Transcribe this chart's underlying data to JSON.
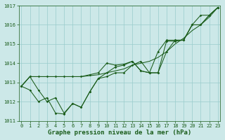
{
  "xlabel": "Graphe pression niveau de la mer (hPa)",
  "bg_color": "#cce8e8",
  "grid_color": "#99cccc",
  "line_color": "#1a5c1a",
  "x_values": [
    0,
    1,
    2,
    3,
    4,
    5,
    6,
    7,
    8,
    9,
    10,
    11,
    12,
    13,
    14,
    15,
    16,
    17,
    18,
    19,
    20,
    21,
    22,
    23
  ],
  "series_smooth": [
    1012.8,
    1013.3,
    1013.3,
    1013.3,
    1013.3,
    1013.3,
    1013.3,
    1013.3,
    1013.35,
    1013.4,
    1013.5,
    1013.6,
    1013.7,
    1013.9,
    1014.0,
    1014.1,
    1014.3,
    1014.6,
    1015.0,
    1015.3,
    1015.7,
    1016.0,
    1016.4,
    1016.9
  ],
  "series_jagged": [
    1012.8,
    1012.6,
    1012.0,
    1012.2,
    1011.4,
    1011.35,
    1011.9,
    1011.7,
    1012.5,
    1013.2,
    1013.5,
    1013.8,
    1013.9,
    1014.1,
    1013.6,
    1013.5,
    1014.6,
    1015.2,
    1015.2,
    1015.2,
    1016.0,
    1016.0,
    1016.5,
    1016.9
  ],
  "series_mid": [
    1012.8,
    1013.3,
    1012.6,
    1012.0,
    1012.2,
    1011.4,
    1011.9,
    1011.7,
    1012.5,
    1013.2,
    1013.3,
    1013.5,
    1013.5,
    1013.9,
    1014.1,
    1013.5,
    1013.5,
    1014.6,
    1015.2,
    1015.2,
    1016.0,
    1016.0,
    1016.5,
    1016.9
  ],
  "series_line": [
    1012.8,
    1013.3,
    1013.3,
    1013.3,
    1013.3,
    1013.3,
    1013.3,
    1013.3,
    1013.4,
    1013.5,
    1014.0,
    1013.9,
    1013.95,
    1014.1,
    1013.6,
    1013.5,
    1013.5,
    1015.15,
    1015.15,
    1015.2,
    1016.0,
    1016.5,
    1016.5,
    1016.9
  ],
  "ylim": [
    1011.0,
    1017.0
  ],
  "yticks": [
    1011,
    1012,
    1013,
    1014,
    1015,
    1016,
    1017
  ],
  "xlim": [
    -0.3,
    23.3
  ],
  "xticks": [
    0,
    1,
    2,
    3,
    4,
    5,
    6,
    7,
    8,
    9,
    10,
    11,
    12,
    13,
    14,
    15,
    16,
    17,
    18,
    19,
    20,
    21,
    22,
    23
  ],
  "tick_fontsize": 5,
  "xlabel_fontsize": 6.5
}
